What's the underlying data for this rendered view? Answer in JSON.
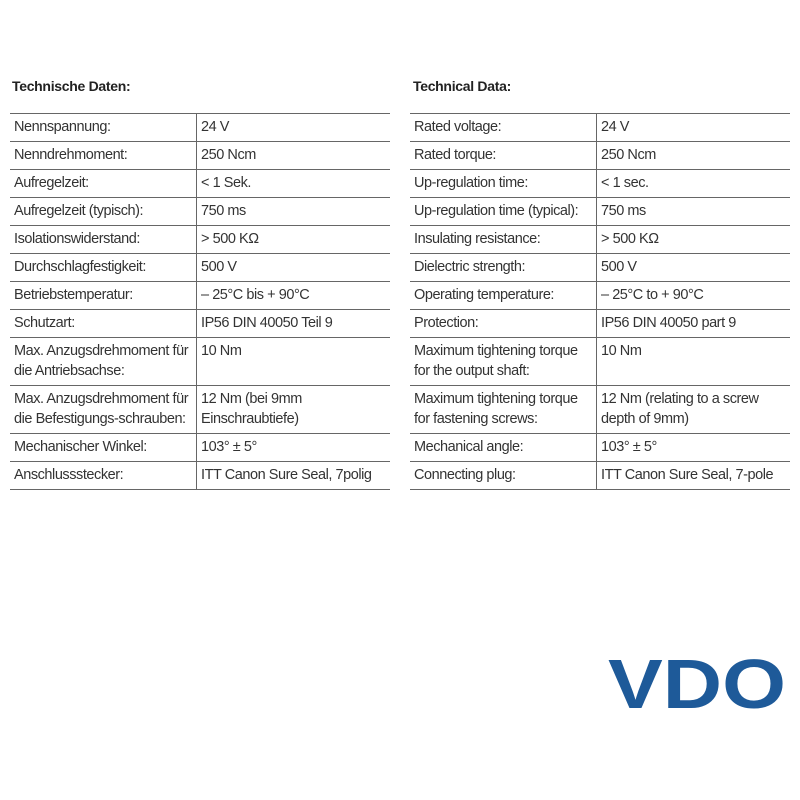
{
  "left": {
    "title": "Technische Daten:",
    "rows": [
      [
        "Nennspannung:",
        "24 V"
      ],
      [
        "Nenndrehmoment:",
        "250 Ncm"
      ],
      [
        "Aufregelzeit:",
        "< 1 Sek."
      ],
      [
        "Aufregelzeit (typisch):",
        "750 ms"
      ],
      [
        "Isolationswiderstand:",
        "> 500 KΩ"
      ],
      [
        "Durchschlagfestigkeit:",
        "500 V"
      ],
      [
        "Betriebstemperatur:",
        "– 25°C bis + 90°C"
      ],
      [
        "Schutzart:",
        "IP56 DIN 40050 Teil 9"
      ],
      [
        [
          "Max. Anzugsdrehmoment für",
          "die Antriebsachse:"
        ],
        "10 Nm"
      ],
      [
        [
          "Max. Anzugsdrehmoment für",
          "die Befestigungs-schrauben:"
        ],
        [
          "12 Nm (bei 9mm",
          "Einschraubtiefe)"
        ]
      ],
      [
        "Mechanischer Winkel:",
        "103° ± 5°"
      ],
      [
        "Anschlussstecker:",
        "ITT Canon Sure Seal, 7polig"
      ]
    ]
  },
  "right": {
    "title": "Technical Data:",
    "rows": [
      [
        "Rated voltage:",
        "24 V"
      ],
      [
        "Rated torque:",
        "250 Ncm"
      ],
      [
        "Up-regulation time:",
        "< 1 sec."
      ],
      [
        "Up-regulation time (typical):",
        "750 ms"
      ],
      [
        "Insulating resistance:",
        "> 500 KΩ"
      ],
      [
        "Dielectric strength:",
        "500 V"
      ],
      [
        "Operating temperature:",
        "– 25°C to + 90°C"
      ],
      [
        "Protection:",
        "IP56 DIN 40050 part 9"
      ],
      [
        [
          "Maximum tightening torque",
          "for the output shaft:"
        ],
        "10 Nm"
      ],
      [
        [
          "Maximum tightening torque",
          "for fastening screws:"
        ],
        [
          "12 Nm (relating to a screw",
          "depth of  9mm)"
        ]
      ],
      [
        "Mechanical angle:",
        "103° ± 5°"
      ],
      [
        "Connecting plug:",
        "ITT Canon Sure Seal, 7-pole"
      ]
    ]
  },
  "logo": "VDO"
}
